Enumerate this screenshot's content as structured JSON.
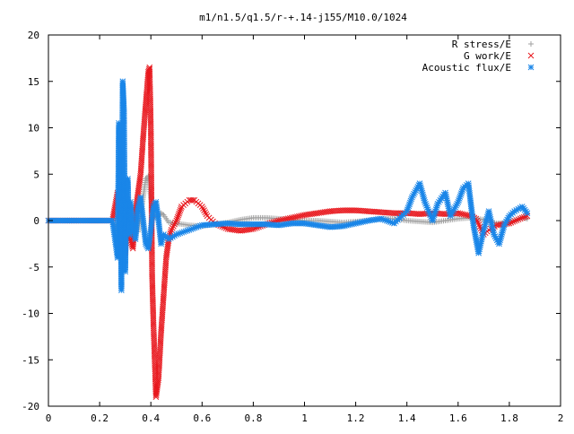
{
  "chart_data": {
    "type": "scatter",
    "title": "m1/n1.5/q1.5/r-+.14-j155/M10.0/1024",
    "xlabel": "",
    "ylabel": "",
    "xlim": [
      0,
      2
    ],
    "ylim": [
      -20,
      20
    ],
    "x_ticks": [
      0,
      0.2,
      0.4,
      0.6,
      0.8,
      1,
      1.2,
      1.4,
      1.6,
      1.8,
      2
    ],
    "x_tick_labels": [
      "0",
      "0.2",
      "0.4",
      "0.6",
      "0.8",
      "1",
      "1.2",
      "1.4",
      "1.6",
      "1.8",
      "2"
    ],
    "y_ticks": [
      -20,
      -15,
      -10,
      -5,
      0,
      5,
      10,
      15,
      20
    ],
    "y_tick_labels": [
      "-20",
      "-15",
      "-10",
      "-5",
      "0",
      "5",
      "10",
      "15",
      "20"
    ],
    "grid": false,
    "legend_position": "top-right",
    "series": [
      {
        "name": "R stress/E",
        "marker": "+",
        "color": "#a0a0a0",
        "x": [
          0.0,
          0.05,
          0.1,
          0.15,
          0.2,
          0.25,
          0.27,
          0.28,
          0.29,
          0.3,
          0.31,
          0.32,
          0.33,
          0.34,
          0.35,
          0.36,
          0.37,
          0.38,
          0.39,
          0.4,
          0.41,
          0.42,
          0.43,
          0.44,
          0.45,
          0.47,
          0.5,
          0.55,
          0.6,
          0.65,
          0.7,
          0.75,
          0.8,
          0.85,
          0.9,
          0.95,
          1.0,
          1.05,
          1.1,
          1.15,
          1.2,
          1.25,
          1.3,
          1.35,
          1.4,
          1.45,
          1.5,
          1.55,
          1.6,
          1.65,
          1.7,
          1.75,
          1.8,
          1.85,
          1.87
        ],
        "y": [
          0,
          0,
          0,
          0,
          0,
          0,
          -1.5,
          1.5,
          -2,
          2.5,
          -1,
          0.5,
          -0.5,
          1.2,
          -1.2,
          0.5,
          2.5,
          4.5,
          4.8,
          2.5,
          0.5,
          0.3,
          0.5,
          0.8,
          0.6,
          -0.2,
          -0.3,
          -0.5,
          -0.6,
          -0.4,
          -0.2,
          0.1,
          0.3,
          0.3,
          0.2,
          0.1,
          0,
          0,
          -0.1,
          -0.2,
          -0.1,
          0,
          0.2,
          0.2,
          0,
          -0.1,
          -0.2,
          0,
          0.2,
          0.3,
          0.1,
          -0.3,
          -0.2,
          0.3,
          0.2
        ]
      },
      {
        "name": "G work/E",
        "marker": "x",
        "color": "#e8181e",
        "x": [
          0.0,
          0.05,
          0.1,
          0.15,
          0.2,
          0.25,
          0.27,
          0.28,
          0.29,
          0.3,
          0.31,
          0.32,
          0.33,
          0.34,
          0.35,
          0.36,
          0.37,
          0.38,
          0.39,
          0.395,
          0.4,
          0.405,
          0.41,
          0.415,
          0.42,
          0.43,
          0.44,
          0.45,
          0.46,
          0.47,
          0.48,
          0.5,
          0.52,
          0.55,
          0.57,
          0.6,
          0.62,
          0.65,
          0.7,
          0.75,
          0.8,
          0.85,
          0.9,
          0.95,
          1.0,
          1.05,
          1.1,
          1.15,
          1.2,
          1.25,
          1.3,
          1.35,
          1.4,
          1.45,
          1.5,
          1.55,
          1.6,
          1.65,
          1.67,
          1.7,
          1.72,
          1.75,
          1.8,
          1.85,
          1.87
        ],
        "y": [
          0,
          0,
          0,
          0,
          0,
          0,
          3,
          1.5,
          -1,
          -3.5,
          2,
          -2,
          -3,
          1,
          3,
          5,
          9,
          12.5,
          16,
          16.5,
          10,
          -6,
          -11,
          -15,
          -19,
          -17,
          -12,
          -8,
          -4,
          -2,
          -1,
          0,
          1.5,
          2.2,
          2.2,
          1.5,
          0.5,
          -0.3,
          -0.9,
          -1.1,
          -0.9,
          -0.4,
          0,
          0.3,
          0.6,
          0.8,
          1,
          1.1,
          1.1,
          1,
          0.9,
          0.8,
          0.8,
          0.7,
          0.8,
          0.7,
          0.8,
          0.5,
          0.2,
          -1.5,
          -1,
          -0.5,
          -0.3,
          0.3,
          0.5
        ]
      },
      {
        "name": "Acoustic flux/E",
        "marker": "*",
        "color": "#1a86e8",
        "x": [
          0.0,
          0.05,
          0.1,
          0.15,
          0.2,
          0.25,
          0.27,
          0.275,
          0.28,
          0.285,
          0.29,
          0.295,
          0.3,
          0.305,
          0.31,
          0.315,
          0.32,
          0.33,
          0.34,
          0.35,
          0.36,
          0.37,
          0.38,
          0.39,
          0.4,
          0.41,
          0.42,
          0.43,
          0.44,
          0.45,
          0.47,
          0.5,
          0.55,
          0.6,
          0.65,
          0.7,
          0.75,
          0.8,
          0.85,
          0.9,
          0.95,
          1.0,
          1.05,
          1.1,
          1.15,
          1.2,
          1.25,
          1.3,
          1.35,
          1.4,
          1.42,
          1.45,
          1.47,
          1.5,
          1.52,
          1.55,
          1.57,
          1.6,
          1.62,
          1.64,
          1.66,
          1.68,
          1.7,
          1.72,
          1.74,
          1.76,
          1.78,
          1.8,
          1.82,
          1.85,
          1.87
        ],
        "y": [
          0,
          0,
          0,
          0,
          0,
          0,
          -4,
          10.5,
          6,
          -7.5,
          15,
          12,
          -5.5,
          2.5,
          4.5,
          -1.5,
          2,
          -1,
          -2,
          1.5,
          2.5,
          0,
          -2.5,
          -3,
          -1,
          1.5,
          2,
          0,
          -2.5,
          -1.5,
          -2,
          -1.5,
          -1,
          -0.5,
          -0.4,
          -0.3,
          -0.4,
          -0.4,
          -0.4,
          -0.5,
          -0.3,
          -0.3,
          -0.5,
          -0.7,
          -0.6,
          -0.3,
          0,
          0.2,
          -0.3,
          1,
          2.5,
          4,
          2,
          0,
          1.8,
          3,
          0.5,
          2,
          3.5,
          4,
          -0.5,
          -3.5,
          -1,
          1,
          -1.5,
          -2.5,
          -0.5,
          0.5,
          1,
          1.5,
          0.8
        ]
      }
    ]
  }
}
